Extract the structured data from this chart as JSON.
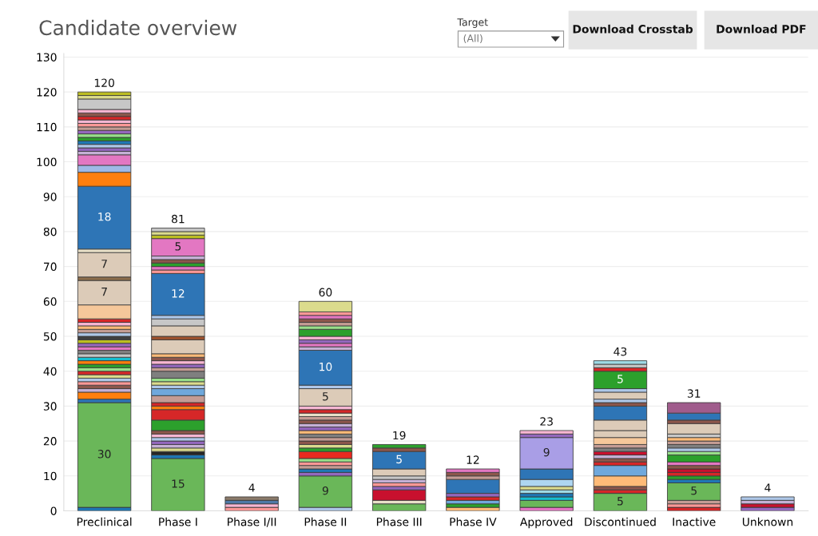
{
  "chart_data": {
    "type": "bar",
    "title": "Candidate overview",
    "annotations": [
      "Target",
      "(All)",
      "Download Crosstab",
      "Download PDF"
    ],
    "categories": [
      "Preclinical",
      "Phase I",
      "Phase I/II",
      "Phase II",
      "Phase III",
      "Phase IV",
      "Approved",
      "Discontinued",
      "Inactive",
      "Unknown"
    ],
    "stacked": true,
    "ylim": [
      0,
      131
    ],
    "yticks": [
      0,
      10,
      20,
      30,
      40,
      50,
      60,
      70,
      80,
      90,
      100,
      110,
      120,
      130
    ],
    "grid": "y",
    "legend": false,
    "totals": [
      "120",
      "81",
      "4",
      "60",
      "19",
      "12",
      "23",
      "43",
      "31",
      "4"
    ],
    "series": [
      {
        "values": [
          1,
          15,
          1,
          1,
          2,
          1,
          1,
          5,
          1,
          1
        ],
        "colors": [
          "#1f77b4",
          "#6ab759",
          "#ff9896",
          "#aec7e8",
          "#6ab759",
          "#ffbb78",
          "#e377c2",
          "#6ab759",
          "#d62728",
          "#9467bd"
        ],
        "value_labels": [
          null,
          "15",
          null,
          null,
          null,
          null,
          null,
          "5",
          null,
          null
        ]
      },
      {
        "values": [
          30,
          1,
          1,
          9,
          1,
          1,
          2,
          1,
          1,
          1
        ],
        "colors": [
          "#6ab759",
          "#1f77b4",
          "#f7b6d2",
          "#6ab759",
          "#e8e0c8",
          "#2ca02c",
          "#6ab759",
          "#d62728",
          "#ff9896",
          "#c8102e"
        ],
        "value_labels": [
          "30",
          null,
          null,
          "9",
          null,
          null,
          null,
          null,
          null,
          null
        ]
      },
      {
        "values": [
          1,
          1,
          1,
          1,
          3,
          1,
          1,
          1,
          1,
          1
        ],
        "colors": [
          "#2e75b6",
          "#262626",
          "#4e79a7",
          "#9467bd",
          "#c8102e",
          "#6fa8dc",
          "#17becf",
          "#8c564b",
          "#c49c94",
          "#c5b0d5"
        ]
      },
      {
        "values": [
          2,
          1,
          1,
          1,
          1,
          1,
          1,
          3,
          5,
          1
        ],
        "colors": [
          "#ff7f0e",
          "#dbdb8d",
          "#8c7b6b",
          "#1f77b4",
          "#9467bd",
          "#d62728",
          "#1f77b4",
          "#ffbb78",
          "#6ab759",
          "#aec7e8"
        ],
        "value_labels": [
          null,
          null,
          null,
          null,
          null,
          null,
          null,
          null,
          "5",
          null
        ]
      },
      {
        "values": [
          1,
          1,
          null,
          1,
          1,
          1,
          1,
          3,
          1,
          null
        ],
        "colors": [
          "#c5b0d5",
          "#c5b0d5",
          null,
          "#c49c94",
          "#ff9896",
          "#9467bd",
          "#9edae5",
          "#6fa8dc",
          "#1f77b4",
          null
        ]
      },
      {
        "values": [
          1,
          1,
          null,
          1,
          1,
          4,
          1,
          1,
          1,
          null
        ],
        "colors": [
          "#8c564b",
          "#9467bd",
          null,
          "#ff9896",
          "#c5b0d5",
          "#2e75b6",
          "#dbdb8d",
          "#d62728",
          "#2ca02c",
          null
        ]
      },
      {
        "values": [
          1,
          1,
          null,
          1,
          1,
          1,
          2,
          1,
          1,
          null
        ],
        "colors": [
          "#ff9896",
          "#aec7e8",
          null,
          "#98df8a",
          "#c7c7c7",
          "#c49c94",
          "#aed6f1",
          "#8c564b",
          "#d62728",
          null
        ]
      },
      {
        "values": [
          1,
          1,
          null,
          2,
          2,
          1,
          3,
          1,
          1,
          null
        ],
        "colors": [
          "#aec7e8",
          "#f7b6d2",
          null,
          "#e8291f",
          "#dccbb8",
          "#8c564b",
          "#2e75b6",
          "#c5b0d5",
          "#c8102e",
          null
        ]
      },
      {
        "values": [
          1,
          1,
          null,
          1,
          5,
          1,
          9,
          1,
          1,
          null
        ],
        "colors": [
          "#dbdb8d",
          "#8c564b",
          null,
          "#2ca02c",
          "#2e75b6",
          "#e377c2",
          "#a99ee6",
          "#c8102e",
          "#8c564b",
          null
        ],
        "value_labels": [
          null,
          null,
          null,
          null,
          "5",
          null,
          "9",
          null,
          null,
          null
        ]
      },
      {
        "values": [
          1,
          3,
          null,
          1,
          1,
          null,
          1,
          1,
          1,
          null
        ],
        "colors": [
          "#d62728",
          "#2ca02c",
          null,
          "#dbdb8d",
          "#8c564b",
          null,
          "#9467bd",
          "#7f7f7f",
          "#e377c2",
          null
        ]
      },
      {
        "values": [
          1,
          3,
          null,
          1,
          1,
          null,
          1,
          1,
          2,
          null
        ],
        "colors": [
          "#98df8a",
          "#d62728",
          null,
          "#8c564b",
          "#2ca02c",
          null,
          "#f7b6d2",
          "#c49c94",
          "#2ca02c",
          null
        ]
      },
      {
        "values": [
          1,
          1,
          null,
          1,
          null,
          null,
          null,
          2,
          1,
          null
        ],
        "colors": [
          "#2ca02c",
          "#ff7f0e",
          null,
          "#c49c94",
          null,
          null,
          null,
          "#f5c79a",
          "#98df8a",
          null
        ]
      },
      {
        "values": [
          1,
          1,
          null,
          1,
          null,
          null,
          null,
          2,
          1,
          null
        ],
        "colors": [
          "#ff7f0e",
          "#d62728",
          null,
          "#7f7f7f",
          null,
          null,
          null,
          "#dccbb8",
          "#aec7e8",
          null
        ]
      },
      {
        "values": [
          1,
          2,
          null,
          1,
          null,
          null,
          null,
          3,
          1,
          null
        ],
        "colors": [
          "#17becf",
          "#c49c94",
          null,
          "#ffbb78",
          null,
          null,
          null,
          "#dccbb8",
          "#7f7f7f",
          null
        ]
      },
      {
        "values": [
          1,
          2,
          null,
          1,
          null,
          null,
          null,
          4,
          1,
          null
        ],
        "colors": [
          "#c7c7c7",
          "#6fa8dc",
          null,
          "#9467bd",
          null,
          null,
          null,
          "#2e75b6",
          "#c49c94",
          null
        ]
      },
      {
        "values": [
          1,
          1,
          null,
          1,
          null,
          null,
          null,
          1,
          1,
          null
        ],
        "colors": [
          "#7f7f7f",
          "#aec7e8",
          null,
          "#c5b0d5",
          null,
          null,
          null,
          "#8c564b",
          "#ffbb78",
          null
        ]
      },
      {
        "values": [
          1,
          1,
          null,
          1,
          null,
          null,
          null,
          1,
          1,
          null
        ],
        "colors": [
          "#e377c2",
          "#dbdb8d",
          null,
          "#8c564b",
          null,
          null,
          null,
          "#aec7e8",
          "#c7c7c7",
          null
        ]
      },
      {
        "values": [
          1,
          1,
          null,
          1,
          null,
          null,
          null,
          2,
          3,
          null
        ],
        "colors": [
          "#9467bd",
          "#98df8a",
          null,
          "#c49c94",
          null,
          null,
          null,
          "#dccbb8",
          "#dccbb8",
          null
        ]
      },
      {
        "values": [
          1,
          2,
          null,
          1,
          null,
          null,
          null,
          1,
          1,
          null
        ],
        "colors": [
          "#bcbd22",
          "#7f7f7f",
          null,
          "#e8e0c8",
          null,
          null,
          null,
          "#aec7e8",
          "#8c564b",
          null
        ]
      },
      {
        "values": [
          1,
          1,
          null,
          1,
          null,
          null,
          null,
          5,
          2,
          null
        ],
        "colors": [
          "#404040",
          "#c49c94",
          null,
          "#d62728",
          null,
          null,
          null,
          "#2ca02c",
          "#2e75b6",
          null
        ],
        "value_labels": [
          null,
          null,
          null,
          null,
          null,
          null,
          null,
          "5",
          null,
          null
        ]
      },
      {
        "values": [
          1,
          1,
          null,
          1,
          null,
          null,
          null,
          1,
          3,
          null
        ],
        "colors": [
          "#aec7e8",
          "#9467bd",
          null,
          "#f7b6d2",
          null,
          null,
          null,
          "#d62728",
          "#a05c8c",
          null
        ]
      },
      {
        "values": [
          1,
          1,
          null,
          5,
          null,
          null,
          null,
          1,
          null,
          null
        ],
        "colors": [
          "#c49c94",
          "#f7b6d2",
          null,
          "#dccbb8",
          null,
          null,
          null,
          "#c7c7c7",
          null,
          null
        ],
        "value_labels": [
          null,
          null,
          null,
          "5",
          null,
          null,
          null,
          null,
          null,
          null
        ]
      },
      {
        "values": [
          1,
          1,
          null,
          1,
          null,
          null,
          null,
          1,
          null,
          null
        ],
        "colors": [
          "#ffbb78",
          "#8c564b",
          null,
          "#aec7e8",
          null,
          null,
          null,
          "#9edae5",
          null,
          null
        ]
      },
      {
        "values": [
          1,
          1,
          null,
          10,
          null,
          null,
          null,
          null,
          null,
          null
        ],
        "colors": [
          "#f7b6d2",
          "#ffbb78",
          null,
          "#2e75b6",
          null,
          null,
          null,
          null,
          null,
          null
        ],
        "value_labels": [
          null,
          null,
          null,
          "10",
          null,
          null,
          null,
          null,
          null,
          null
        ]
      },
      {
        "values": [
          1,
          4,
          null,
          1,
          null,
          null,
          null,
          null,
          null,
          null
        ],
        "colors": [
          "#d62728",
          "#dccbb8",
          null,
          "#c5b0d5",
          null,
          null,
          null,
          null,
          null,
          null
        ]
      },
      {
        "values": [
          4,
          1,
          null,
          1,
          null,
          null,
          null,
          null,
          null,
          null
        ],
        "colors": [
          "#f5c79a",
          "#a0522d",
          null,
          "#e377c2",
          null,
          null,
          null,
          null,
          null,
          null
        ]
      },
      {
        "values": [
          7,
          3,
          null,
          1,
          null,
          null,
          null,
          null,
          null,
          null
        ],
        "colors": [
          "#dccbb8",
          "#dccbb8",
          null,
          "#9467bd",
          null,
          null,
          null,
          null,
          null,
          null
        ],
        "value_labels": [
          "7",
          null,
          null,
          null,
          null,
          null,
          null,
          null,
          null,
          null
        ]
      },
      {
        "values": [
          1,
          2,
          null,
          1,
          null,
          null,
          null,
          null,
          null,
          null
        ],
        "colors": [
          "#8c6d4b",
          "#c7c7c7",
          null,
          "#f7b6d2",
          null,
          null,
          null,
          null,
          null,
          null
        ]
      },
      {
        "values": [
          7,
          1,
          null,
          2,
          null,
          null,
          null,
          null,
          null,
          null
        ],
        "colors": [
          "#dccbb8",
          "#aec7e8",
          null,
          "#2ca02c",
          null,
          null,
          null,
          null,
          null,
          null
        ],
        "value_labels": [
          "7",
          null,
          null,
          null,
          null,
          null,
          null,
          null,
          null,
          null
        ]
      },
      {
        "values": [
          1,
          12,
          null,
          1,
          null,
          null,
          null,
          null,
          null,
          null
        ],
        "colors": [
          "#e8e0c8",
          "#2e75b6",
          null,
          "#98df8a",
          null,
          null,
          null,
          null,
          null,
          null
        ],
        "value_labels": [
          null,
          "12",
          null,
          null,
          null,
          null,
          null,
          null,
          null,
          null
        ]
      },
      {
        "values": [
          18,
          1,
          null,
          1,
          null,
          null,
          null,
          null,
          null,
          null
        ],
        "colors": [
          "#2e75b6",
          "#ff9896",
          null,
          "#c49c94",
          null,
          null,
          null,
          null,
          null,
          null
        ],
        "value_labels": [
          "18",
          null,
          null,
          null,
          null,
          null,
          null,
          null,
          null,
          null
        ]
      },
      {
        "values": [
          4,
          1,
          null,
          1,
          null,
          null,
          null,
          null,
          null,
          null
        ],
        "colors": [
          "#ff7f0e",
          "#e377c2",
          null,
          "#8c564b",
          null,
          null,
          null,
          null,
          null,
          null
        ]
      },
      {
        "values": [
          2,
          1,
          null,
          1,
          null,
          null,
          null,
          null,
          null,
          null
        ],
        "colors": [
          "#9fb9e6",
          "#2ca02c",
          null,
          "#e377c2",
          null,
          null,
          null,
          null,
          null,
          null
        ]
      },
      {
        "values": [
          3,
          1,
          null,
          1,
          null,
          null,
          null,
          null,
          null,
          null
        ],
        "colors": [
          "#e377c2",
          "#8c564b",
          null,
          "#ff9896",
          null,
          null,
          null,
          null,
          null,
          null
        ]
      },
      {
        "values": [
          1,
          1,
          null,
          3,
          null,
          null,
          null,
          null,
          null,
          null
        ],
        "colors": [
          "#c5b0d5",
          "#c5b0d5",
          null,
          "#dbdb8d",
          null,
          null,
          null,
          null,
          null,
          null
        ]
      },
      {
        "values": [
          1,
          5,
          null,
          null,
          null,
          null,
          null,
          null,
          null,
          null
        ],
        "colors": [
          "#9467bd",
          "#e377c2",
          null,
          null,
          null,
          null,
          null,
          null,
          null,
          null
        ],
        "value_labels": [
          null,
          "5",
          null,
          null,
          null,
          null,
          null,
          null,
          null,
          null
        ]
      },
      {
        "values": [
          1,
          1,
          null,
          null,
          null,
          null,
          null,
          null,
          null,
          null
        ],
        "colors": [
          "#aec7e8",
          "#bcbd22",
          null,
          null,
          null,
          null,
          null,
          null,
          null,
          null
        ]
      },
      {
        "values": [
          1,
          1,
          null,
          null,
          null,
          null,
          null,
          null,
          null,
          null
        ],
        "colors": [
          "#1f77b4",
          "#dbdb8d",
          null,
          null,
          null,
          null,
          null,
          null,
          null,
          null
        ]
      },
      {
        "values": [
          1,
          1,
          null,
          null,
          null,
          null,
          null,
          null,
          null,
          null
        ],
        "colors": [
          "#2ca02c",
          "#c7c7c7",
          null,
          null,
          null,
          null,
          null,
          null,
          null,
          null
        ]
      },
      {
        "values": [
          1,
          null,
          null,
          null,
          null,
          null,
          null,
          null,
          null,
          null
        ],
        "colors": [
          "#98df8a",
          null,
          null,
          null,
          null,
          null,
          null,
          null,
          null,
          null
        ]
      },
      {
        "values": [
          1,
          null,
          null,
          null,
          null,
          null,
          null,
          null,
          null,
          null
        ],
        "colors": [
          "#9467bd",
          null,
          null,
          null,
          null,
          null,
          null,
          null,
          null,
          null
        ]
      },
      {
        "values": [
          1,
          null,
          null,
          null,
          null,
          null,
          null,
          null,
          null,
          null
        ],
        "colors": [
          "#c49c94",
          null,
          null,
          null,
          null,
          null,
          null,
          null,
          null,
          null
        ]
      },
      {
        "values": [
          1,
          null,
          null,
          null,
          null,
          null,
          null,
          null,
          null,
          null
        ],
        "colors": [
          "#ff9896",
          null,
          null,
          null,
          null,
          null,
          null,
          null,
          null,
          null
        ]
      },
      {
        "values": [
          1,
          null,
          null,
          null,
          null,
          null,
          null,
          null,
          null,
          null
        ],
        "colors": [
          "#f7b6d2",
          null,
          null,
          null,
          null,
          null,
          null,
          null,
          null,
          null
        ]
      },
      {
        "values": [
          1,
          null,
          null,
          null,
          null,
          null,
          null,
          null,
          null,
          null
        ],
        "colors": [
          "#d62728",
          null,
          null,
          null,
          null,
          null,
          null,
          null,
          null,
          null
        ]
      },
      {
        "values": [
          1,
          null,
          null,
          null,
          null,
          null,
          null,
          null,
          null,
          null
        ],
        "colors": [
          "#8c564b",
          null,
          null,
          null,
          null,
          null,
          null,
          null,
          null,
          null
        ]
      },
      {
        "values": [
          1,
          null,
          null,
          null,
          null,
          null,
          null,
          null,
          null,
          null
        ],
        "colors": [
          "#f7b6d2",
          null,
          null,
          null,
          null,
          null,
          null,
          null,
          null,
          null
        ]
      },
      {
        "values": [
          3,
          null,
          null,
          null,
          null,
          null,
          null,
          null,
          null,
          null
        ],
        "colors": [
          "#c7c7c7",
          null,
          null,
          null,
          null,
          null,
          null,
          null,
          null,
          null
        ]
      },
      {
        "values": [
          1,
          null,
          null,
          null,
          null,
          null,
          null,
          null,
          null,
          null
        ],
        "colors": [
          "#dbdb8d",
          null,
          null,
          null,
          null,
          null,
          null,
          null,
          null,
          null
        ]
      },
      {
        "values": [
          1,
          null,
          null,
          null,
          null,
          null,
          null,
          null,
          null,
          null
        ],
        "colors": [
          "#bcbd22",
          null,
          null,
          null,
          null,
          null,
          null,
          null,
          null,
          null
        ]
      }
    ]
  }
}
